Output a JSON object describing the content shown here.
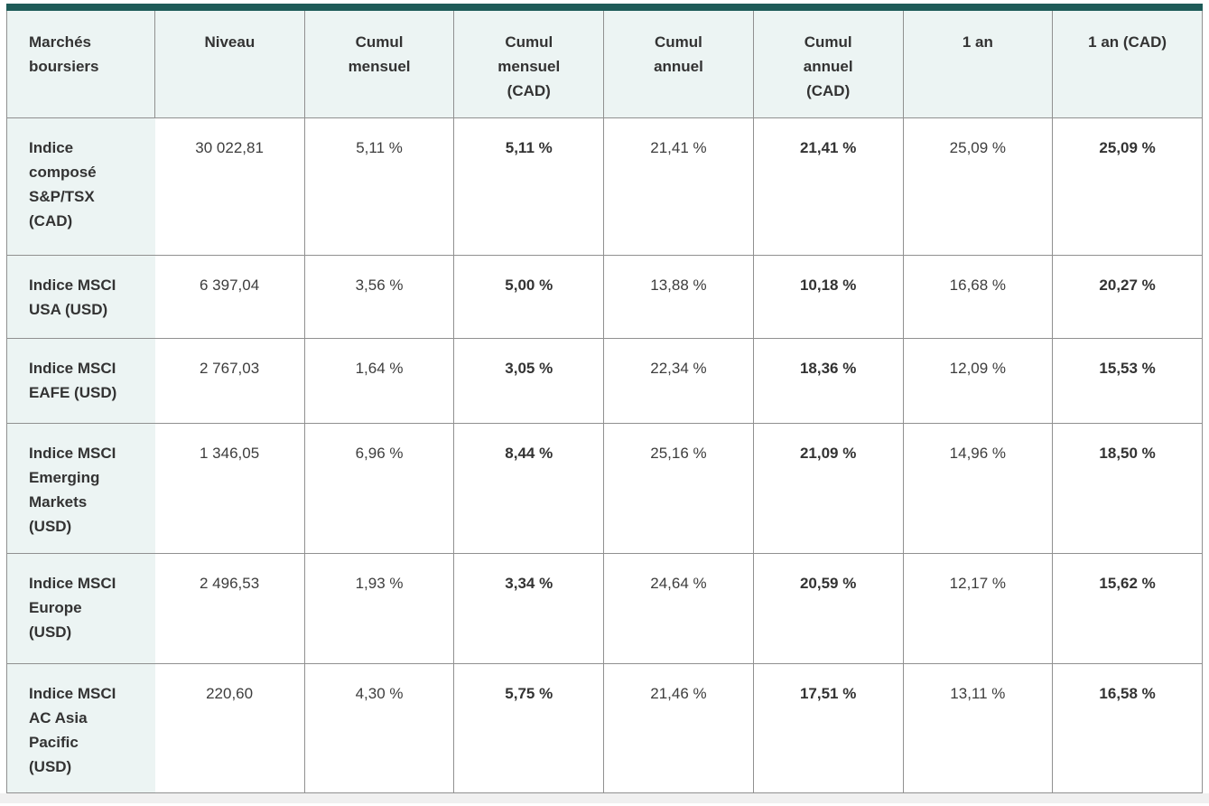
{
  "colors": {
    "accent_bar": "#1e5b58",
    "tint_bg": "#ecf4f3",
    "border": "#909090",
    "bottom_strip": "#f0f0f0"
  },
  "chart_data": {
    "type": "table",
    "columns": [
      "Marchés boursiers",
      "Niveau",
      "Cumul mensuel",
      "Cumul mensuel (CAD)",
      "Cumul annuel",
      "Cumul annuel (CAD)",
      "1 an",
      "1 an (CAD)"
    ],
    "rows": [
      {
        "label": "Indice composé S&P/TSX (CAD)",
        "values": [
          "30 022,81",
          "5,11 %",
          "5,11 %",
          "21,41 %",
          "21,41 %",
          "25,09 %",
          "25,09 %"
        ]
      },
      {
        "label": "Indice MSCI USA (USD)",
        "values": [
          "6 397,04",
          "3,56 %",
          "5,00 %",
          "13,88 %",
          "10,18 %",
          "16,68 %",
          "20,27 %"
        ]
      },
      {
        "label": "Indice MSCI EAFE (USD)",
        "values": [
          "2 767,03",
          "1,64 %",
          "3,05 %",
          "22,34 %",
          "18,36 %",
          "12,09 %",
          "15,53 %"
        ]
      },
      {
        "label": "Indice MSCI Emerging Markets (USD)",
        "values": [
          "1 346,05",
          "6,96 %",
          "8,44 %",
          "25,16 %",
          "21,09 %",
          "14,96 %",
          "18,50 %"
        ]
      },
      {
        "label": "Indice MSCI Europe (USD)",
        "values": [
          "2 496,53",
          "1,93 %",
          "3,34 %",
          "24,64 %",
          "20,59 %",
          "12,17 %",
          "15,62 %"
        ]
      },
      {
        "label": "Indice MSCI AC Asia Pacific (USD)",
        "values": [
          "220,60",
          "4,30 %",
          "5,75 %",
          "21,46 %",
          "17,51 %",
          "13,11 %",
          "16,58 %"
        ]
      }
    ]
  }
}
